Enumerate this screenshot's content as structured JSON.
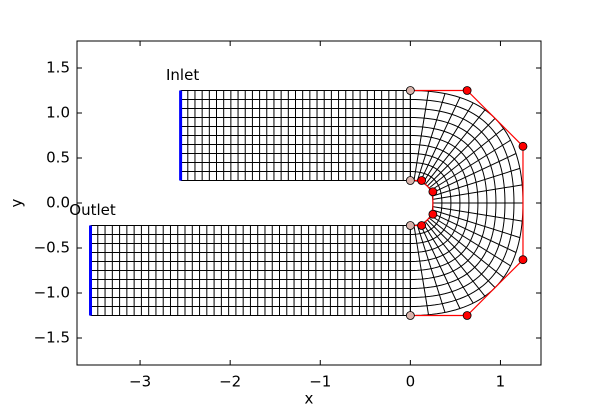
{
  "chart_data": {
    "type": "mesh",
    "xlabel": "x",
    "ylabel": "y",
    "xlim": [
      -3.7,
      1.45
    ],
    "ylim": [
      -1.8,
      1.8
    ],
    "xticks": [
      {
        "value": -3,
        "label": "−3"
      },
      {
        "value": -2,
        "label": "−2"
      },
      {
        "value": -1,
        "label": "−1"
      },
      0,
      1
    ],
    "yticks": [
      {
        "value": -1.5,
        "label": "−1.5"
      },
      {
        "value": -1,
        "label": "−1.0"
      },
      {
        "value": -0.5,
        "label": "−0.5"
      },
      {
        "value": 0,
        "label": "0.0"
      },
      0.5,
      {
        "value": 1,
        "label": "1.0"
      },
      1.5
    ],
    "endpoints": {
      "color": "#d9b3ab",
      "x": [
        0,
        0,
        0,
        0
      ],
      "y": [
        1.25,
        0.25,
        -0.25,
        -1.25
      ]
    },
    "control_points_outer": {
      "color": "#ff0000",
      "x": [
        0.63,
        1.25,
        1.25,
        0.63
      ],
      "y": [
        1.25,
        0.63,
        -0.63,
        -1.25
      ]
    },
    "control_points_inner": {
      "color": "#ff0000",
      "x": [
        0.125,
        0.25,
        0.25,
        0.125
      ],
      "y": [
        0.25,
        0.125,
        -0.125,
        -0.25
      ]
    },
    "inlet": {
      "label": "Inlet",
      "color": "#0000ff",
      "x": [
        -2.55,
        -2.55
      ],
      "y": [
        0.25,
        1.25
      ]
    },
    "outlet": {
      "label": "Outlet",
      "color": "#0000ff",
      "x": [
        -3.55,
        -3.55
      ],
      "y": [
        -1.25,
        -0.25
      ]
    }
  }
}
